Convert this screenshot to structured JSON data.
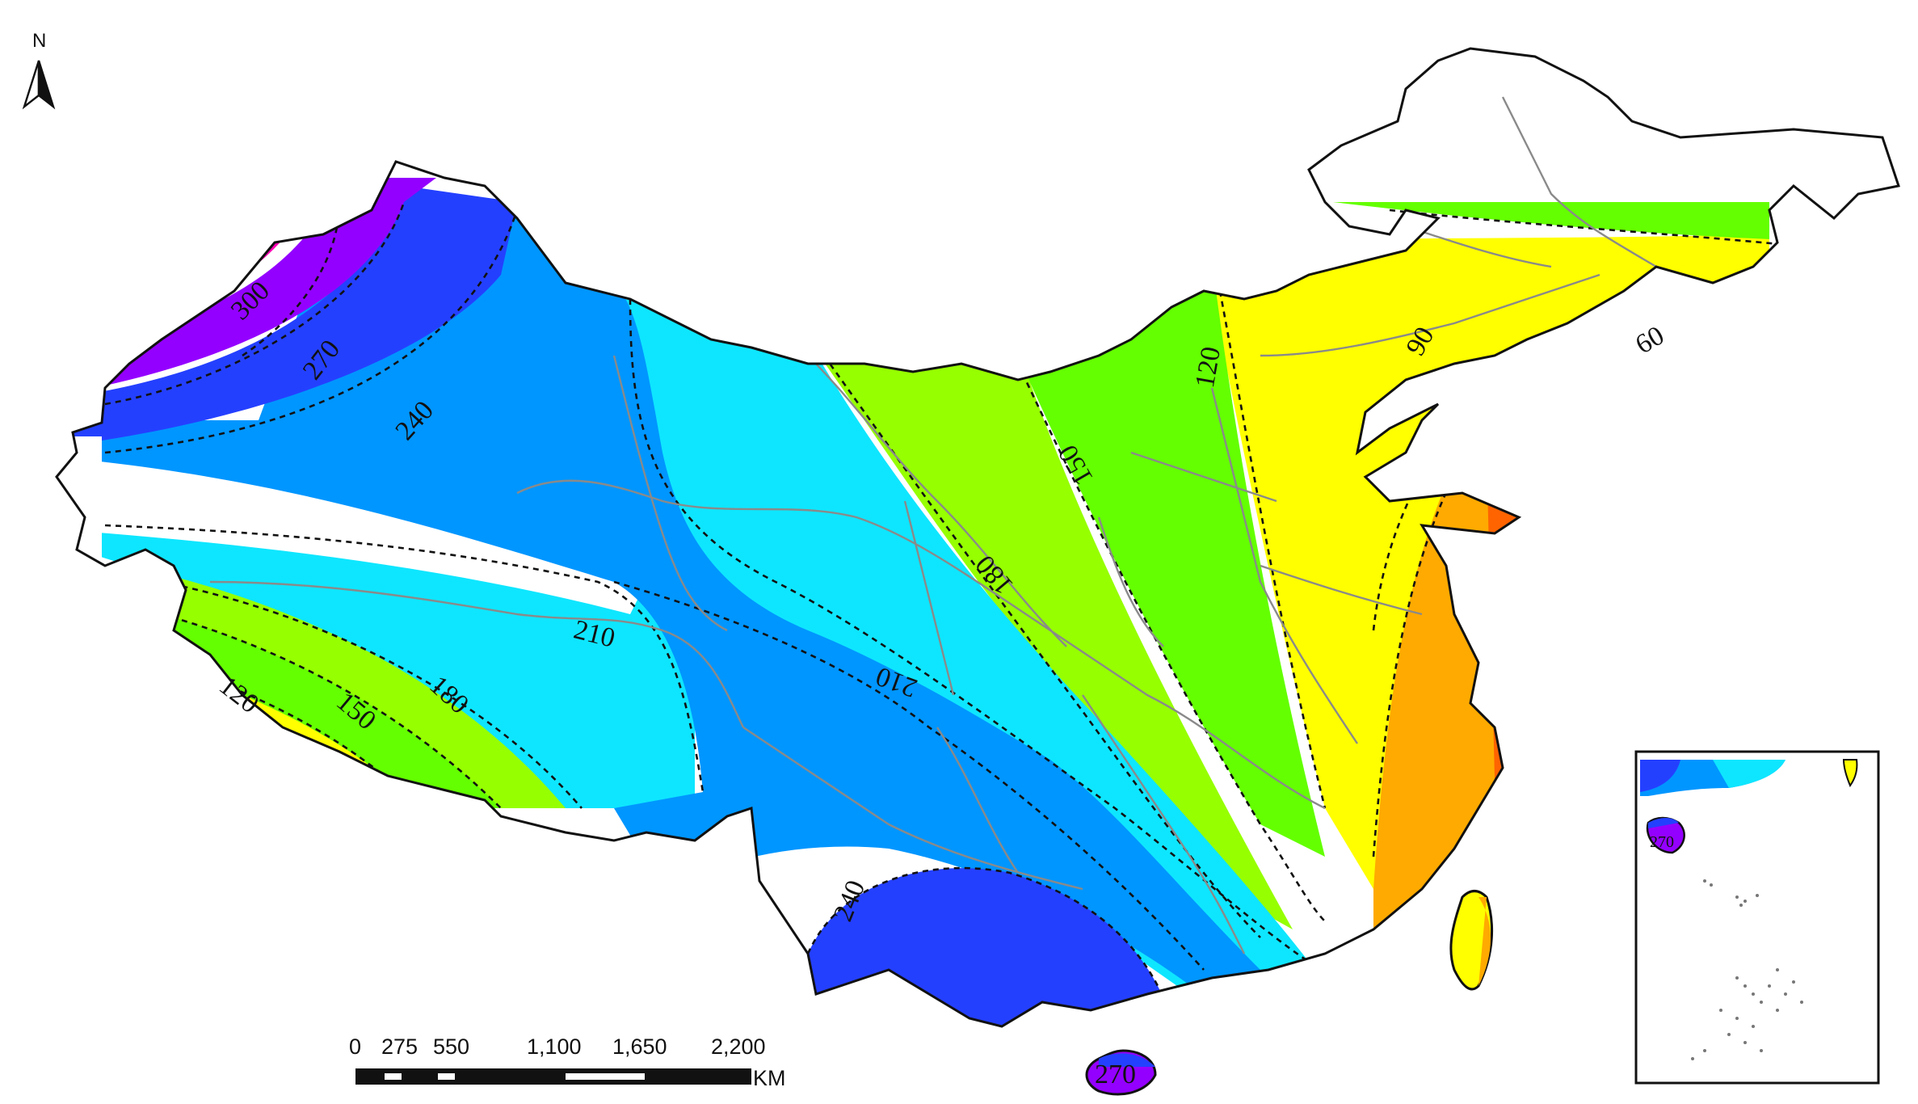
{
  "north_arrow": {
    "label": "N",
    "icon": "north-arrow-icon"
  },
  "contour_labels": {
    "l300": "300",
    "l270_nw": "270",
    "l240_nw": "240",
    "l210_w": "210",
    "l180_sw": "180",
    "l150_sw": "150",
    "l120_sw": "120",
    "l210_c": "210",
    "l180_c": "180",
    "l150_c": "150",
    "l120_n": "120",
    "l90": "90",
    "l60": "60",
    "l240_s": "240",
    "l270_h": "270",
    "l270_inset": "270"
  },
  "scale_bar": {
    "ticks": [
      "0",
      "275",
      "550",
      "1,100",
      "1,650",
      "2,200"
    ],
    "unit": "KM"
  },
  "zone_colors": {
    "z300": "#ff00b4",
    "z270": "#9400ff",
    "z240": "#2440ff",
    "z210": "#0096ff",
    "z180": "#0ee6ff",
    "z150": "#96ff00",
    "z120": "#64ff00",
    "z90": "#ffff00",
    "z60": "#ffaa00",
    "z30": "#ff6400"
  }
}
